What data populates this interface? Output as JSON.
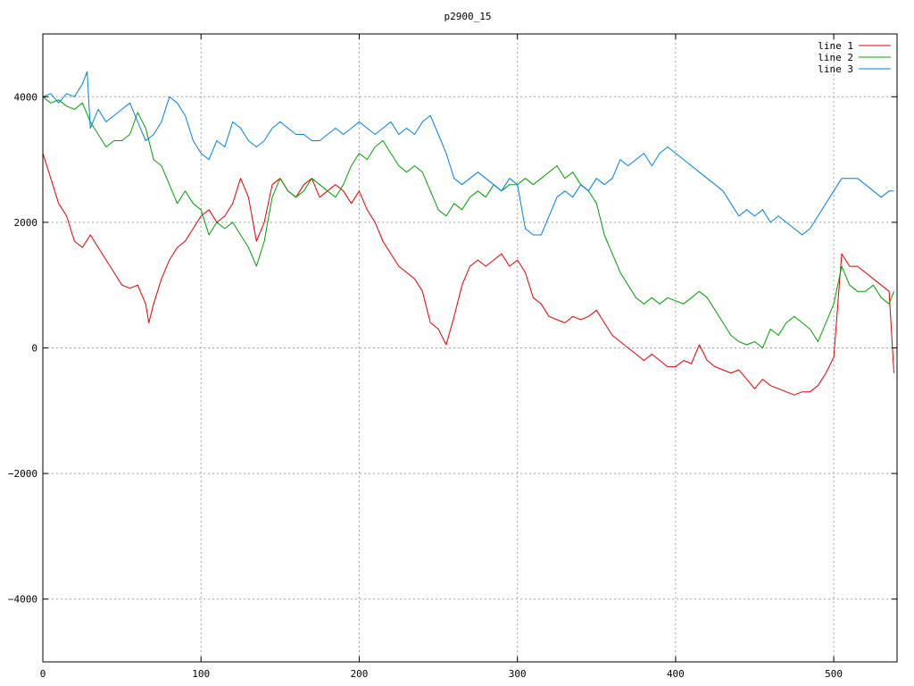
{
  "chart_data": {
    "type": "line",
    "title": "p2900_15",
    "xlabel": "",
    "ylabel": "",
    "xlim": [
      0,
      540
    ],
    "ylim": [
      -5000,
      5000
    ],
    "xticks": [
      0,
      100,
      200,
      300,
      400,
      500
    ],
    "yticks": [
      -4000,
      -2000,
      0,
      2000,
      4000
    ],
    "xtick_labels": [
      "0",
      "100",
      "200",
      "300",
      "400",
      "500"
    ],
    "ytick_labels": [
      "−4000",
      "−2000",
      "0",
      "2000",
      "4000"
    ],
    "grid": true,
    "legend_position": "top-right",
    "series": [
      {
        "name": "line 1",
        "color": "#e00000",
        "x": [
          0,
          5,
          10,
          15,
          20,
          25,
          30,
          35,
          40,
          45,
          50,
          55,
          60,
          65,
          67,
          70,
          75,
          80,
          85,
          90,
          95,
          100,
          105,
          110,
          115,
          120,
          125,
          130,
          135,
          140,
          145,
          150,
          155,
          160,
          165,
          170,
          175,
          180,
          185,
          190,
          195,
          200,
          205,
          210,
          215,
          220,
          225,
          230,
          235,
          240,
          245,
          250,
          255,
          260,
          265,
          270,
          275,
          280,
          285,
          290,
          295,
          300,
          305,
          310,
          315,
          320,
          325,
          330,
          335,
          340,
          345,
          350,
          355,
          360,
          365,
          370,
          375,
          380,
          385,
          390,
          395,
          400,
          405,
          410,
          415,
          420,
          425,
          430,
          435,
          440,
          445,
          450,
          455,
          460,
          465,
          470,
          475,
          480,
          485,
          490,
          495,
          500,
          505,
          510,
          515,
          520,
          525,
          530,
          535,
          538
        ],
        "values": [
          3100,
          2700,
          2300,
          2100,
          1700,
          1600,
          1800,
          1600,
          1400,
          1200,
          1000,
          950,
          1000,
          700,
          400,
          700,
          1100,
          1400,
          1600,
          1700,
          1900,
          2100,
          2200,
          2000,
          2100,
          2300,
          2700,
          2400,
          1700,
          2000,
          2600,
          2700,
          2500,
          2400,
          2600,
          2700,
          2400,
          2500,
          2600,
          2500,
          2300,
          2500,
          2200,
          2000,
          1700,
          1500,
          1300,
          1200,
          1100,
          900,
          400,
          300,
          50,
          500,
          1000,
          1300,
          1400,
          1300,
          1400,
          1500,
          1300,
          1400,
          1200,
          800,
          700,
          500,
          450,
          400,
          500,
          450,
          500,
          600,
          400,
          200,
          100,
          0,
          -100,
          -200,
          -100,
          -200,
          -300,
          -300,
          -200,
          -250,
          50,
          -200,
          -300,
          -350,
          -400,
          -350,
          -500,
          -650,
          -500,
          -600,
          -650,
          -700,
          -750,
          -700,
          -700,
          -600,
          -400,
          -150,
          1500,
          1300,
          1300,
          1200,
          1100,
          1000,
          900,
          -400
        ]
      },
      {
        "name": "line 2",
        "color": "#00a000",
        "x": [
          0,
          5,
          10,
          15,
          20,
          25,
          30,
          35,
          40,
          45,
          50,
          55,
          60,
          65,
          70,
          75,
          80,
          85,
          90,
          95,
          100,
          105,
          110,
          115,
          120,
          125,
          130,
          135,
          140,
          145,
          150,
          155,
          160,
          165,
          170,
          175,
          180,
          185,
          190,
          195,
          200,
          205,
          210,
          215,
          220,
          225,
          230,
          235,
          240,
          245,
          250,
          255,
          260,
          265,
          270,
          275,
          280,
          285,
          290,
          295,
          300,
          305,
          310,
          315,
          320,
          325,
          330,
          335,
          340,
          345,
          350,
          355,
          360,
          365,
          370,
          375,
          380,
          385,
          390,
          395,
          400,
          405,
          410,
          415,
          420,
          425,
          430,
          435,
          440,
          445,
          450,
          455,
          460,
          465,
          470,
          475,
          480,
          485,
          490,
          495,
          500,
          505,
          510,
          515,
          520,
          525,
          530,
          535,
          538
        ],
        "values": [
          4000,
          3900,
          3950,
          3850,
          3800,
          3900,
          3600,
          3400,
          3200,
          3300,
          3300,
          3400,
          3750,
          3500,
          3000,
          2900,
          2600,
          2300,
          2500,
          2300,
          2200,
          1800,
          2000,
          1900,
          2000,
          1800,
          1600,
          1300,
          1700,
          2400,
          2700,
          2500,
          2400,
          2500,
          2700,
          2600,
          2500,
          2400,
          2600,
          2900,
          3100,
          3000,
          3200,
          3300,
          3100,
          2900,
          2800,
          2900,
          2800,
          2500,
          2200,
          2100,
          2300,
          2200,
          2400,
          2500,
          2400,
          2600,
          2500,
          2600,
          2600,
          2700,
          2600,
          2700,
          2800,
          2900,
          2700,
          2800,
          2600,
          2500,
          2300,
          1800,
          1500,
          1200,
          1000,
          800,
          700,
          800,
          700,
          800,
          750,
          700,
          800,
          900,
          800,
          600,
          400,
          200,
          100,
          50,
          100,
          0,
          300,
          200,
          400,
          500,
          400,
          300,
          100,
          400,
          700,
          1300,
          1000,
          900,
          900,
          1000,
          800,
          700,
          900
        ]
      },
      {
        "name": "line 3",
        "color": "#0080e0",
        "x": [
          0,
          5,
          10,
          15,
          20,
          25,
          28,
          30,
          35,
          40,
          45,
          50,
          55,
          60,
          65,
          70,
          75,
          80,
          85,
          90,
          95,
          100,
          105,
          110,
          115,
          120,
          125,
          130,
          135,
          140,
          145,
          150,
          155,
          160,
          165,
          170,
          175,
          180,
          185,
          190,
          195,
          200,
          205,
          210,
          215,
          220,
          225,
          230,
          235,
          240,
          245,
          250,
          255,
          260,
          265,
          270,
          275,
          280,
          285,
          290,
          295,
          300,
          305,
          310,
          315,
          320,
          325,
          330,
          335,
          340,
          345,
          350,
          355,
          360,
          365,
          370,
          375,
          380,
          385,
          390,
          395,
          400,
          405,
          410,
          415,
          420,
          425,
          430,
          435,
          440,
          445,
          450,
          455,
          460,
          465,
          470,
          475,
          480,
          485,
          490,
          495,
          500,
          505,
          510,
          515,
          520,
          525,
          530,
          535,
          538
        ],
        "values": [
          4000,
          4050,
          3900,
          4050,
          4000,
          4200,
          4400,
          3500,
          3800,
          3600,
          3700,
          3800,
          3900,
          3600,
          3300,
          3400,
          3600,
          4000,
          3900,
          3700,
          3300,
          3100,
          3000,
          3300,
          3200,
          3600,
          3500,
          3300,
          3200,
          3300,
          3500,
          3600,
          3500,
          3400,
          3400,
          3300,
          3300,
          3400,
          3500,
          3400,
          3500,
          3600,
          3500,
          3400,
          3500,
          3600,
          3400,
          3500,
          3400,
          3600,
          3700,
          3400,
          3100,
          2700,
          2600,
          2700,
          2800,
          2700,
          2600,
          2500,
          2700,
          2600,
          1900,
          1800,
          1800,
          2100,
          2400,
          2500,
          2400,
          2600,
          2500,
          2700,
          2600,
          2700,
          3000,
          2900,
          3000,
          3100,
          2900,
          3100,
          3200,
          3100,
          3000,
          2900,
          2800,
          2700,
          2600,
          2500,
          2300,
          2100,
          2200,
          2100,
          2200,
          2000,
          2100,
          2000,
          1900,
          1800,
          1900,
          2100,
          2300,
          2500,
          2700,
          2700,
          2700,
          2600,
          2500,
          2400,
          2500,
          2500
        ]
      }
    ]
  }
}
